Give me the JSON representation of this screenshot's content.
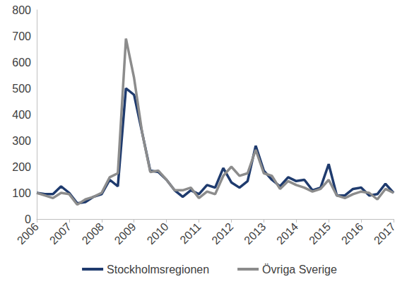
{
  "chart_data": {
    "type": "line",
    "categories": [
      "2006",
      null,
      null,
      null,
      "2007",
      null,
      null,
      null,
      "2008",
      null,
      null,
      null,
      "2009",
      null,
      null,
      null,
      "2010",
      null,
      null,
      null,
      "2011",
      null,
      null,
      null,
      "2012",
      null,
      null,
      null,
      "2013",
      null,
      null,
      null,
      "2014",
      null,
      null,
      null,
      "2015",
      null,
      null,
      null,
      "2016",
      null,
      null,
      null,
      "2017"
    ],
    "series": [
      {
        "name": "Stockholmsregionen",
        "color": "#1f3b6e",
        "line_style": "solid",
        "marker": "none",
        "values": [
          100,
          95,
          95,
          125,
          100,
          60,
          65,
          85,
          95,
          150,
          125,
          500,
          475,
          330,
          185,
          180,
          150,
          110,
          85,
          110,
          95,
          130,
          120,
          195,
          140,
          120,
          145,
          280,
          185,
          150,
          125,
          160,
          145,
          150,
          110,
          120,
          210,
          90,
          90,
          115,
          120,
          90,
          95,
          135,
          100
        ]
      },
      {
        "name": "Övriga Sverige",
        "color": "#8c8c8c",
        "line_style": "solid",
        "marker": "none",
        "values": [
          100,
          90,
          80,
          100,
          95,
          55,
          75,
          85,
          100,
          160,
          175,
          690,
          540,
          330,
          180,
          185,
          150,
          110,
          110,
          120,
          80,
          105,
          95,
          165,
          200,
          165,
          175,
          265,
          175,
          165,
          115,
          145,
          130,
          120,
          105,
          115,
          150,
          90,
          80,
          95,
          105,
          100,
          75,
          115,
          100
        ]
      }
    ],
    "ylim": [
      0,
      800
    ],
    "yticks": [
      0,
      100,
      200,
      300,
      400,
      500,
      600,
      700,
      800
    ],
    "grid": false,
    "legend": "bottom"
  }
}
